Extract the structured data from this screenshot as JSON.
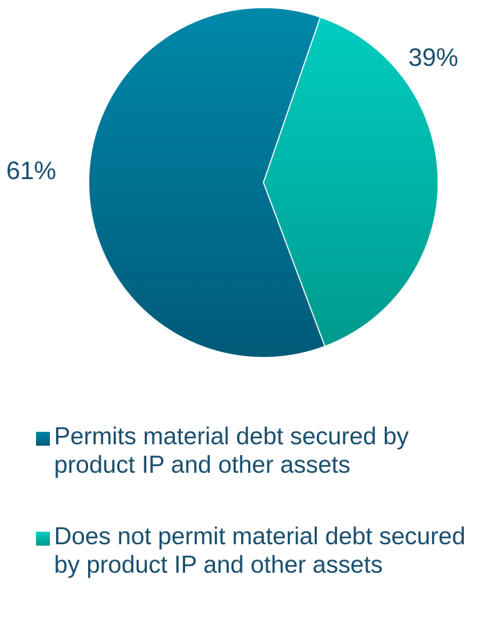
{
  "chart_data": {
    "type": "pie",
    "slices": [
      {
        "label": "Permits material debt secured by product IP and other assets",
        "value": 61,
        "display": "61%",
        "color": "#00789a"
      },
      {
        "label": "Does not permit material debt secured by product IP and other assets",
        "value": 39,
        "display": "39%",
        "color": "#00bbb0"
      }
    ],
    "legend_position": "bottom",
    "start_angle_deg": 19
  },
  "legend": {
    "items": [
      {
        "label": "Permits material debt secured by product IP and other assets",
        "color": "#00789a"
      },
      {
        "label": "Does not permit material debt secured by product IP and other assets",
        "color": "#00bbb0"
      }
    ]
  }
}
